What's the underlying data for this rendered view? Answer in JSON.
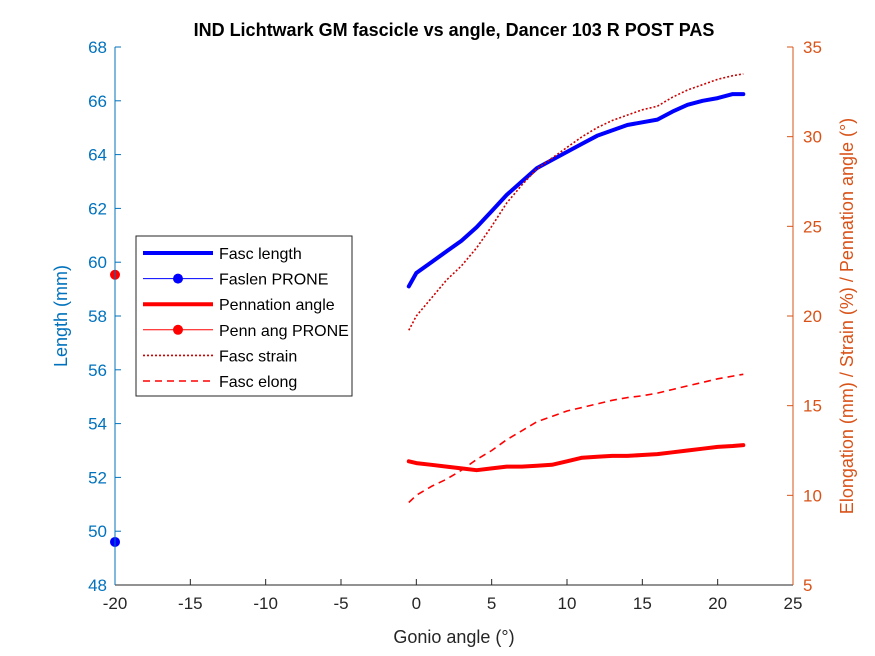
{
  "chart_data": {
    "type": "line",
    "title": "IND Lichtwark GM fascicle vs angle, Dancer 103 R POST PAS",
    "xlabel": "Gonio angle (°)",
    "ylabel_left": "Length (mm)",
    "ylabel_right": "Elongation (mm) / Strain (%) / Pennation angle (°)",
    "xlim": [
      -20,
      25
    ],
    "ylim_left": [
      48,
      68
    ],
    "ylim_right": [
      5,
      35
    ],
    "x_ticks": [
      "-20",
      "-15",
      "-10",
      "-5",
      "0",
      "5",
      "10",
      "15",
      "20",
      "25"
    ],
    "y_left_ticks": [
      "48",
      "50",
      "52",
      "54",
      "56",
      "58",
      "60",
      "62",
      "64",
      "66",
      "68"
    ],
    "y_right_ticks": [
      "5",
      "10",
      "15",
      "20",
      "25",
      "30",
      "35"
    ],
    "colors": {
      "left_axis": "#0072BD",
      "right_axis": "#D95319",
      "fasc_length": "#0000FF",
      "pennation": "#FF0000",
      "strain": "#CC0000",
      "elong": "#FF0000"
    },
    "legend": {
      "placement": "center-left",
      "entries": [
        "Fasc length",
        "Faslen PRONE",
        "Pennation angle",
        "Penn ang PRONE",
        "Fasc strain",
        "Fasc elong"
      ]
    },
    "series": [
      {
        "name": "Fasc length",
        "axis": "left",
        "style": "thick-solid",
        "x": [
          -0.5,
          0,
          1,
          2,
          3,
          4,
          5,
          6,
          7,
          8,
          9,
          10,
          11,
          12,
          13,
          14,
          15,
          16,
          17,
          18,
          19,
          20,
          21,
          21.7
        ],
        "y": [
          59.1,
          59.6,
          60.0,
          60.4,
          60.8,
          61.3,
          61.9,
          62.5,
          63.0,
          63.5,
          63.8,
          64.1,
          64.4,
          64.7,
          64.9,
          65.1,
          65.2,
          65.3,
          65.6,
          65.85,
          66.0,
          66.1,
          66.25,
          66.25
        ]
      },
      {
        "name": "Faslen PRONE",
        "axis": "left",
        "style": "marker",
        "x": [
          -20
        ],
        "y": [
          49.6
        ]
      },
      {
        "name": "Pennation angle",
        "axis": "right",
        "style": "thick-solid",
        "x": [
          -0.5,
          0,
          1,
          2,
          3,
          4,
          5,
          6,
          7,
          8,
          9,
          10,
          11,
          12,
          13,
          14,
          15,
          16,
          17,
          18,
          19,
          20,
          21,
          21.7
        ],
        "y": [
          11.9,
          11.8,
          11.7,
          11.6,
          11.5,
          11.4,
          11.5,
          11.6,
          11.6,
          11.65,
          11.7,
          11.9,
          12.1,
          12.15,
          12.2,
          12.2,
          12.25,
          12.3,
          12.4,
          12.5,
          12.6,
          12.7,
          12.75,
          12.8
        ]
      },
      {
        "name": "Penn ang PRONE",
        "axis": "right",
        "style": "marker",
        "x": [
          -20
        ],
        "y": [
          22.3
        ]
      },
      {
        "name": "Fasc strain",
        "axis": "right",
        "style": "dotted",
        "x": [
          -0.5,
          0,
          1,
          2,
          3,
          4,
          5,
          6,
          7,
          8,
          9,
          10,
          11,
          12,
          13,
          14,
          15,
          16,
          17,
          18,
          19,
          20,
          21,
          21.7
        ],
        "y": [
          19.2,
          20.0,
          21.0,
          22.0,
          22.8,
          23.8,
          25.0,
          26.3,
          27.3,
          28.2,
          28.8,
          29.4,
          30.0,
          30.5,
          30.9,
          31.2,
          31.5,
          31.7,
          32.2,
          32.6,
          32.9,
          33.2,
          33.4,
          33.5
        ]
      },
      {
        "name": "Fasc elong",
        "axis": "right",
        "style": "dashed",
        "x": [
          -0.5,
          0,
          1,
          2,
          3,
          4,
          5,
          6,
          7,
          8,
          9,
          10,
          11,
          12,
          13,
          14,
          15,
          16,
          17,
          18,
          19,
          20,
          21,
          21.7
        ],
        "y": [
          9.6,
          10.0,
          10.5,
          10.9,
          11.4,
          12.0,
          12.5,
          13.1,
          13.6,
          14.1,
          14.4,
          14.7,
          14.9,
          15.1,
          15.3,
          15.45,
          15.55,
          15.7,
          15.9,
          16.1,
          16.3,
          16.5,
          16.65,
          16.75
        ]
      }
    ]
  }
}
